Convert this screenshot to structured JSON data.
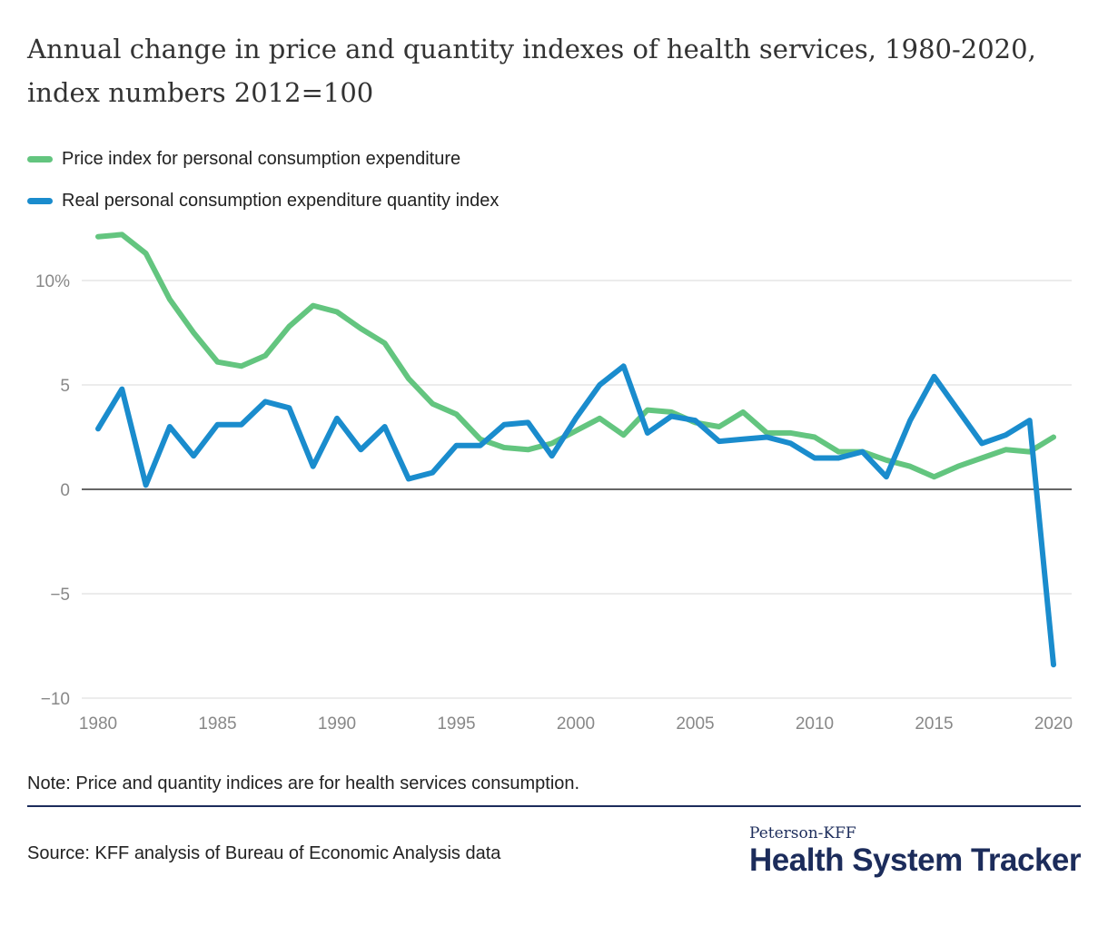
{
  "title": "Annual change in price and quantity indexes of health services, 1980-2020, index numbers 2012=100",
  "note": "Note: Price and quantity indices are for health services consumption.",
  "source": "Source: KFF analysis of Bureau of Economic Analysis data",
  "logo": {
    "small": "Peterson-KFF",
    "big": "Health System Tracker"
  },
  "chart_data": {
    "type": "line",
    "title": "Annual change in price and quantity indexes of health services, 1980-2020, index numbers 2012=100",
    "xlabel": "",
    "ylabel": "",
    "xlim": [
      1980,
      2020
    ],
    "ylim": [
      -10,
      12.5
    ],
    "x_ticks": [
      "1980",
      "1985",
      "1990",
      "1995",
      "2000",
      "2005",
      "2010",
      "2015",
      "2020"
    ],
    "y_ticks": [
      {
        "v": 10,
        "label": "10%"
      },
      {
        "v": 5,
        "label": "5"
      },
      {
        "v": 0,
        "label": "0"
      },
      {
        "v": -5,
        "label": "−5"
      },
      {
        "v": -10,
        "label": "−10"
      }
    ],
    "grid": true,
    "legend": "top-left",
    "x": [
      1980,
      1981,
      1982,
      1983,
      1984,
      1985,
      1986,
      1987,
      1988,
      1989,
      1990,
      1991,
      1992,
      1993,
      1994,
      1995,
      1996,
      1997,
      1998,
      1999,
      2000,
      2001,
      2002,
      2003,
      2004,
      2005,
      2006,
      2007,
      2008,
      2009,
      2010,
      2011,
      2012,
      2013,
      2014,
      2015,
      2016,
      2017,
      2018,
      2019,
      2020
    ],
    "series": [
      {
        "name": "Price index for personal consumption expenditure",
        "color": "#63c57f",
        "values": [
          12.1,
          12.2,
          11.3,
          9.1,
          7.5,
          6.1,
          5.9,
          6.4,
          7.8,
          8.8,
          8.5,
          7.7,
          7.0,
          5.3,
          4.1,
          3.6,
          2.4,
          2.0,
          1.9,
          2.2,
          2.8,
          3.4,
          2.6,
          3.8,
          3.7,
          3.2,
          3.0,
          3.7,
          2.7,
          2.7,
          2.5,
          1.8,
          1.8,
          1.4,
          1.1,
          0.6,
          1.1,
          1.5,
          1.9,
          1.8,
          2.5
        ]
      },
      {
        "name": "Real personal consumption expenditure quantity index",
        "color": "#1a8ccd",
        "values": [
          2.9,
          4.8,
          0.2,
          3.0,
          1.6,
          3.1,
          3.1,
          4.2,
          3.9,
          1.1,
          3.4,
          1.9,
          3.0,
          0.5,
          0.8,
          2.1,
          2.1,
          3.1,
          3.2,
          1.6,
          3.4,
          5.0,
          5.9,
          2.7,
          3.5,
          3.3,
          2.3,
          2.4,
          2.5,
          2.2,
          1.5,
          1.5,
          1.8,
          0.6,
          3.3,
          5.4,
          3.8,
          2.2,
          2.6,
          3.3,
          -8.4
        ]
      }
    ]
  }
}
